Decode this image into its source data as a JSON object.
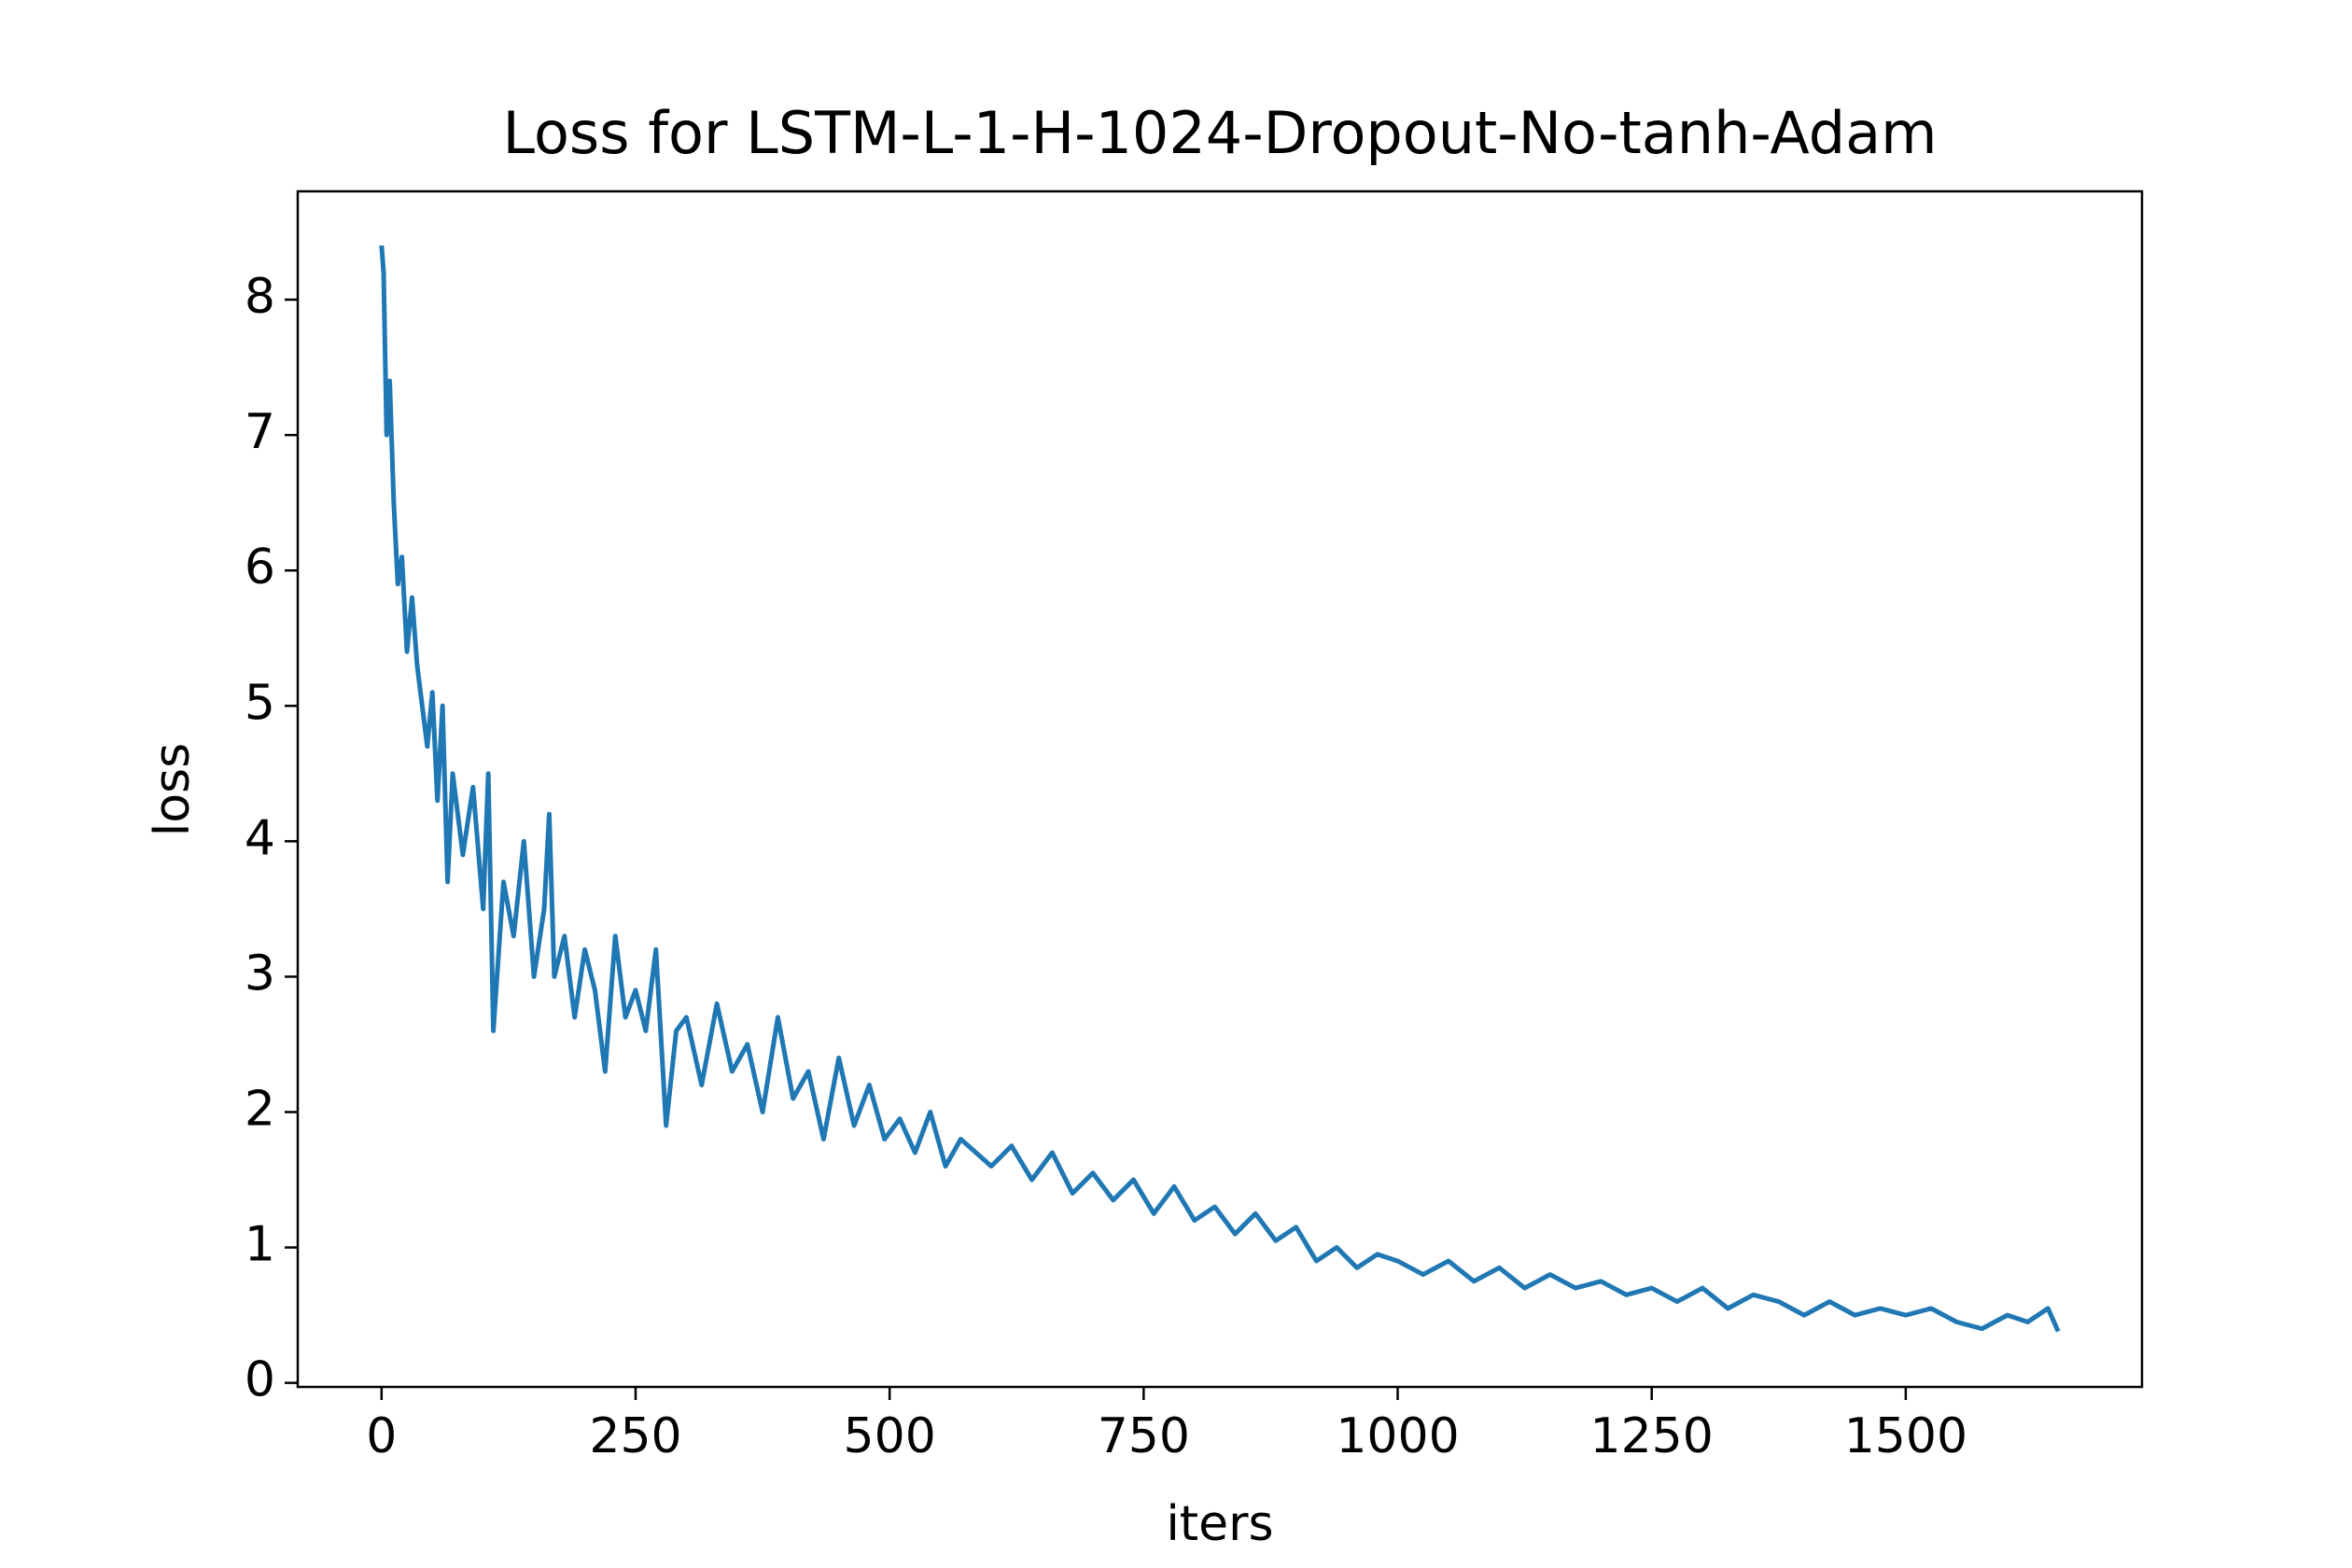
{
  "chart_data": {
    "type": "line",
    "title": "Loss for LSTM-L-1-H-1024-Dropout-No-tanh-Adam",
    "xlabel": "iters",
    "ylabel": "loss",
    "color": "#1f77b4",
    "x": [
      0,
      2,
      5,
      8,
      12,
      16,
      20,
      25,
      30,
      35,
      40,
      45,
      50,
      55,
      60,
      65,
      70,
      80,
      90,
      100,
      105,
      110,
      120,
      130,
      140,
      150,
      160,
      165,
      170,
      180,
      190,
      200,
      210,
      220,
      230,
      240,
      250,
      260,
      270,
      280,
      290,
      300,
      315,
      330,
      345,
      360,
      375,
      390,
      405,
      420,
      435,
      450,
      465,
      480,
      495,
      510,
      525,
      540,
      555,
      570,
      585,
      600,
      620,
      640,
      660,
      680,
      700,
      720,
      740,
      760,
      780,
      800,
      820,
      840,
      860,
      880,
      900,
      920,
      940,
      960,
      980,
      1000,
      1025,
      1050,
      1075,
      1100,
      1125,
      1150,
      1175,
      1200,
      1225,
      1250,
      1275,
      1300,
      1325,
      1350,
      1375,
      1400,
      1425,
      1450,
      1475,
      1500,
      1525,
      1550,
      1575,
      1600,
      1620,
      1640,
      1650
    ],
    "values": [
      8.4,
      8.2,
      7.0,
      7.4,
      6.5,
      5.9,
      6.1,
      5.4,
      5.8,
      5.3,
      5.0,
      4.7,
      5.1,
      4.3,
      5.0,
      3.7,
      4.5,
      3.9,
      4.4,
      3.5,
      4.5,
      2.6,
      3.7,
      3.3,
      4.0,
      3.0,
      3.5,
      4.2,
      3.0,
      3.3,
      2.7,
      3.2,
      2.9,
      2.3,
      3.3,
      2.7,
      2.9,
      2.6,
      3.2,
      1.9,
      2.6,
      2.7,
      2.2,
      2.8,
      2.3,
      2.5,
      2.0,
      2.7,
      2.1,
      2.3,
      1.8,
      2.4,
      1.9,
      2.2,
      1.8,
      1.95,
      1.7,
      2.0,
      1.6,
      1.8,
      1.7,
      1.6,
      1.75,
      1.5,
      1.7,
      1.4,
      1.55,
      1.35,
      1.5,
      1.25,
      1.45,
      1.2,
      1.3,
      1.1,
      1.25,
      1.05,
      1.15,
      0.9,
      1.0,
      0.85,
      0.95,
      0.9,
      0.8,
      0.9,
      0.75,
      0.85,
      0.7,
      0.8,
      0.7,
      0.75,
      0.65,
      0.7,
      0.6,
      0.7,
      0.55,
      0.65,
      0.6,
      0.5,
      0.6,
      0.5,
      0.55,
      0.5,
      0.55,
      0.45,
      0.4,
      0.5,
      0.45,
      0.55,
      0.38
    ],
    "xlim": [
      -82.5,
      1732.5
    ],
    "ylim": [
      -0.03,
      8.8
    ],
    "xticks": [
      0,
      250,
      500,
      750,
      1000,
      1250,
      1500
    ],
    "yticks": [
      0,
      1,
      2,
      3,
      4,
      5,
      6,
      7,
      8
    ]
  }
}
